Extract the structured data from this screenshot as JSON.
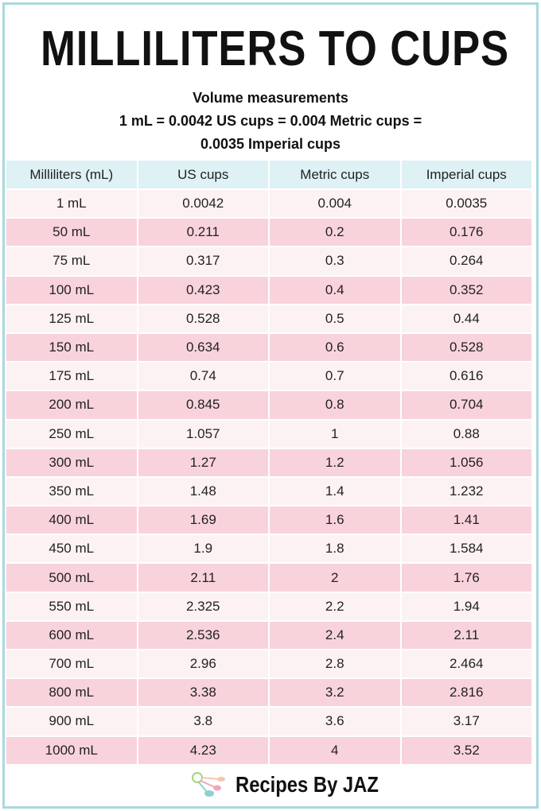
{
  "title": "MILLILITERS TO CUPS",
  "subtitle": {
    "line1": "Volume measurements",
    "line2": "1 mL = 0.0042 US cups = 0.004 Metric cups =",
    "line3": "0.0035 Imperial cups"
  },
  "table": {
    "headers": [
      "Milliliters (mL)",
      "US cups",
      "Metric cups",
      "Imperial cups"
    ],
    "rows": [
      [
        "1 mL",
        "0.0042",
        "0.004",
        "0.0035"
      ],
      [
        "50 mL",
        "0.211",
        "0.2",
        "0.176"
      ],
      [
        "75 mL",
        "0.317",
        "0.3",
        "0.264"
      ],
      [
        "100 mL",
        "0.423",
        "0.4",
        "0.352"
      ],
      [
        "125 mL",
        "0.528",
        "0.5",
        "0.44"
      ],
      [
        "150 mL",
        "0.634",
        "0.6",
        "0.528"
      ],
      [
        "175 mL",
        "0.74",
        "0.7",
        "0.616"
      ],
      [
        "200 mL",
        "0.845",
        "0.8",
        "0.704"
      ],
      [
        "250 mL",
        "1.057",
        "1",
        "0.88"
      ],
      [
        "300 mL",
        "1.27",
        "1.2",
        "1.056"
      ],
      [
        "350 mL",
        "1.48",
        "1.4",
        "1.232"
      ],
      [
        "400 mL",
        "1.69",
        "1.6",
        "1.41"
      ],
      [
        "450 mL",
        "1.9",
        "1.8",
        "1.584"
      ],
      [
        "500 mL",
        "2.11",
        "2",
        "1.76"
      ],
      [
        "550 mL",
        "2.325",
        "2.2",
        "1.94"
      ],
      [
        "600 mL",
        "2.536",
        "2.4",
        "2.11"
      ],
      [
        "700 mL",
        "2.96",
        "2.8",
        "2.464"
      ],
      [
        "800 mL",
        "3.38",
        "3.2",
        "2.816"
      ],
      [
        "900 mL",
        "3.8",
        "3.6",
        "3.17"
      ],
      [
        "1000 mL",
        "4.23",
        "4",
        "3.52"
      ]
    ]
  },
  "footer": {
    "brand": "Recipes By JAZ",
    "logo_icon": "measuring-spoons-icon"
  },
  "colors": {
    "border": "#a9d9dd",
    "header_bg": "#def1f4",
    "row_light": "#fdf2f3",
    "row_pink": "#f9d3dc"
  }
}
